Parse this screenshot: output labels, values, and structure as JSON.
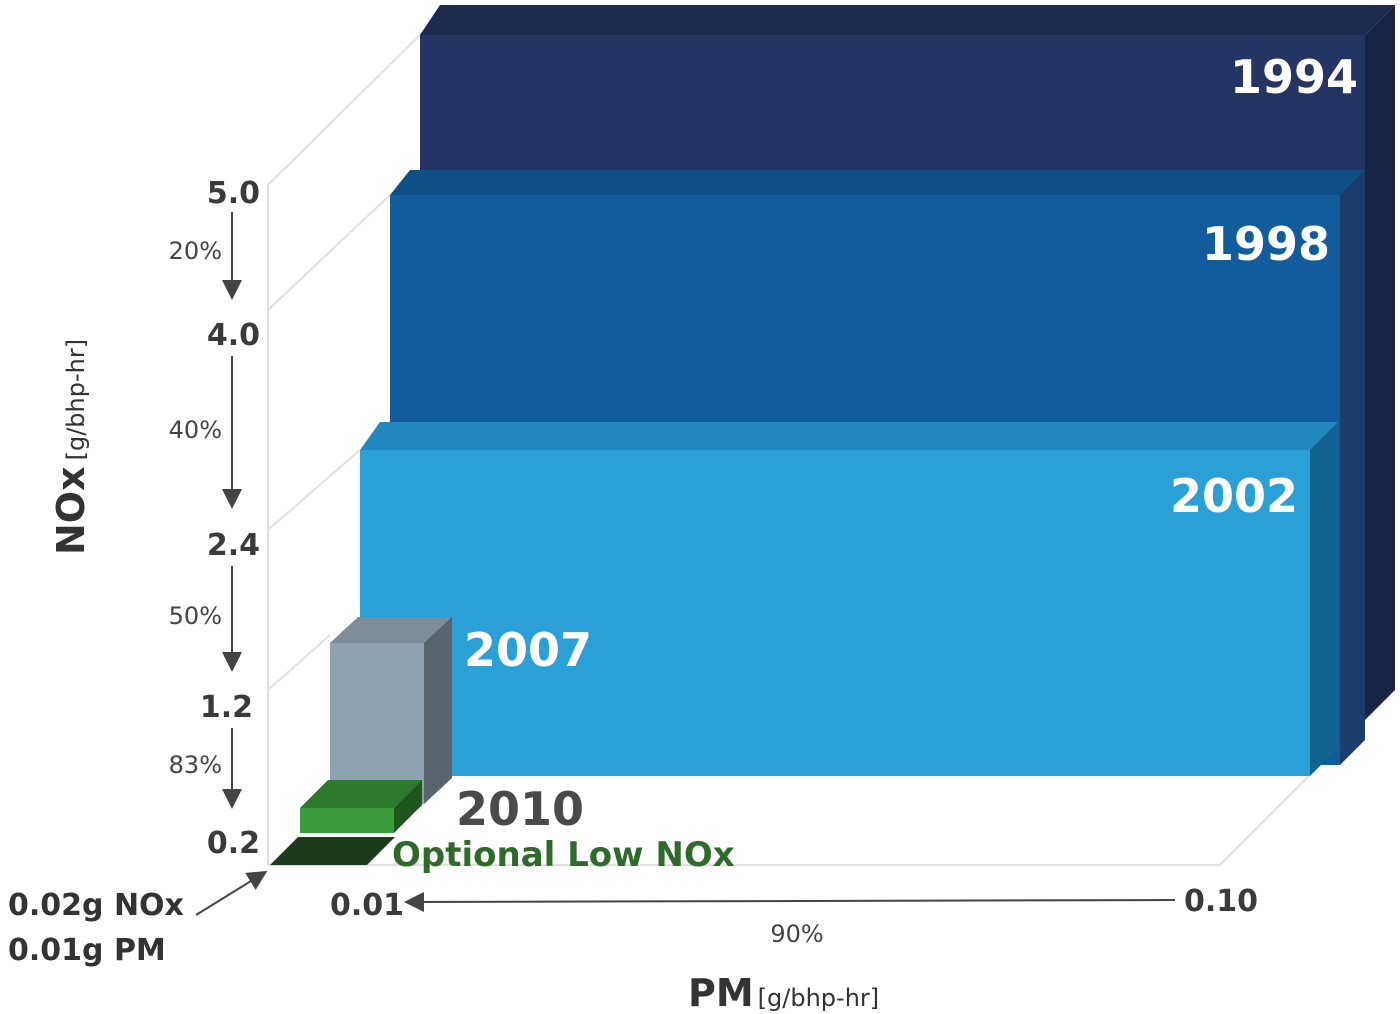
{
  "chart_data": {
    "type": "bar",
    "title": "",
    "xlabel": "PM",
    "xlabel_unit": "[g/bhp-hr]",
    "ylabel": "NOx",
    "ylabel_unit": "[g/bhp-hr]",
    "series": [
      {
        "year": "1994",
        "nox": 5.0,
        "pm": 0.1,
        "color": "#22305a"
      },
      {
        "year": "1998",
        "nox": 4.0,
        "pm": 0.1,
        "color": "#135a9a"
      },
      {
        "year": "2002",
        "nox": 2.4,
        "pm": 0.1,
        "color": "#2aa0d6"
      },
      {
        "year": "2007",
        "nox": 1.2,
        "pm": 0.01,
        "color": "#8fa1b1"
      },
      {
        "year": "2010",
        "nox": 0.2,
        "pm": 0.01,
        "color": "#3c9b3c"
      }
    ],
    "optional_label": "Optional Low NOx",
    "y_ticks": [
      "5.0",
      "4.0",
      "2.4",
      "1.2",
      "0.2"
    ],
    "y_reductions": [
      "20%",
      "40%",
      "50%",
      "83%"
    ],
    "x_ticks": [
      "0.01",
      "0.10"
    ],
    "x_reduction": "90%",
    "note_lines": [
      "0.02g NOx",
      "0.01g PM"
    ]
  }
}
